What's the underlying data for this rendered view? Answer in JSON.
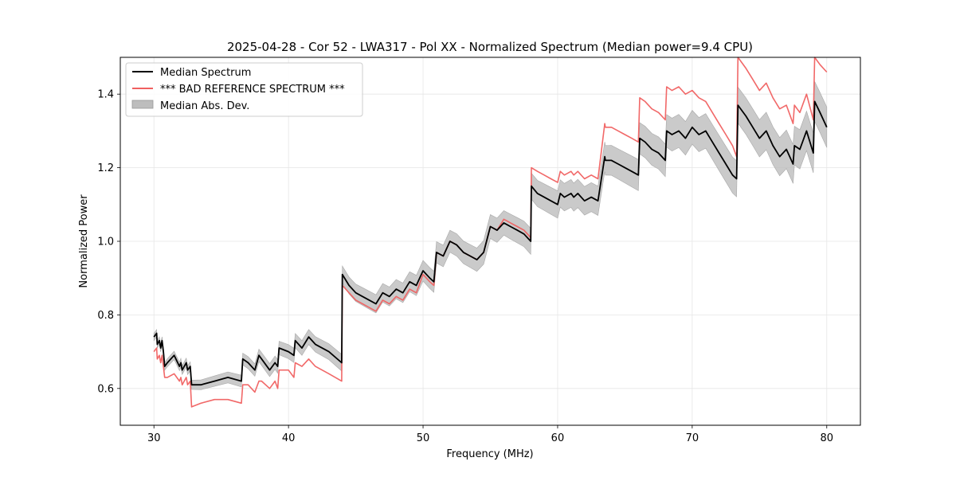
{
  "chart_data": {
    "type": "line",
    "title": "2025-04-28 - Cor 52 - LWA317 - Pol XX - Normalized Spectrum (Median power=9.4 CPU)",
    "xlabel": "Frequency (MHz)",
    "ylabel": "Normalized Power",
    "xlim": [
      27.5,
      82.5
    ],
    "ylim": [
      0.5,
      1.5
    ],
    "xticks": [
      30,
      40,
      50,
      60,
      70,
      80
    ],
    "yticks": [
      0.6,
      0.8,
      1.0,
      1.2,
      1.4
    ],
    "xtick_labels": [
      "30",
      "40",
      "50",
      "60",
      "70",
      "80"
    ],
    "ytick_labels": [
      "0.6",
      "0.8",
      "1.0",
      "1.2",
      "1.4"
    ],
    "grid": true,
    "legend": {
      "location": "upper-left",
      "entries": [
        {
          "label": "Median Spectrum",
          "color": "#000000",
          "kind": "line"
        },
        {
          "label": "*** BAD REFERENCE SPECTRUM ***",
          "color": "#f06060",
          "kind": "line"
        },
        {
          "label": "Median Abs. Dev.",
          "color": "#bdbdbd",
          "kind": "band"
        }
      ]
    },
    "series": [
      {
        "name": "Median Spectrum",
        "color": "#000000",
        "x": [
          30.0,
          30.2,
          30.25,
          30.4,
          30.5,
          30.6,
          30.7,
          30.8,
          31.0,
          31.5,
          31.9,
          32.0,
          32.1,
          32.4,
          32.5,
          32.7,
          32.8,
          33.5,
          34.5,
          35.5,
          36.5,
          36.6,
          37.0,
          37.5,
          37.8,
          38.0,
          38.6,
          39.0,
          39.2,
          39.3,
          40.0,
          40.4,
          40.5,
          41.0,
          41.5,
          42.0,
          43.0,
          43.95,
          44.0,
          44.5,
          45.0,
          45.5,
          46.0,
          46.5,
          47.0,
          47.5,
          48.0,
          48.5,
          49.0,
          49.5,
          50.0,
          50.5,
          50.8,
          51.0,
          51.5,
          52.0,
          52.5,
          53.0,
          53.5,
          54.0,
          54.5,
          55.0,
          55.5,
          56.0,
          56.5,
          57.0,
          57.5,
          58.0,
          58.05,
          58.5,
          59.0,
          59.5,
          60.0,
          60.2,
          60.5,
          61.0,
          61.2,
          61.5,
          62.0,
          62.5,
          63.0,
          63.5,
          63.55,
          64.0,
          64.5,
          65.0,
          65.5,
          66.0,
          66.1,
          66.5,
          67.0,
          67.5,
          68.0,
          68.1,
          68.5,
          69.0,
          69.5,
          70.0,
          70.5,
          71.0,
          71.5,
          72.0,
          72.5,
          73.0,
          73.3,
          73.4,
          74.0,
          74.5,
          75.0,
          75.5,
          76.0,
          76.5,
          77.0,
          77.5,
          77.6,
          78.0,
          78.5,
          79.0,
          79.1,
          79.5,
          80.0
        ],
        "values": [
          0.74,
          0.75,
          0.72,
          0.73,
          0.71,
          0.73,
          0.7,
          0.66,
          0.67,
          0.69,
          0.66,
          0.67,
          0.65,
          0.67,
          0.65,
          0.66,
          0.61,
          0.61,
          0.62,
          0.63,
          0.62,
          0.68,
          0.67,
          0.65,
          0.69,
          0.68,
          0.65,
          0.67,
          0.66,
          0.71,
          0.7,
          0.69,
          0.73,
          0.71,
          0.74,
          0.72,
          0.7,
          0.67,
          0.91,
          0.88,
          0.86,
          0.85,
          0.84,
          0.83,
          0.86,
          0.85,
          0.87,
          0.86,
          0.89,
          0.88,
          0.92,
          0.9,
          0.89,
          0.97,
          0.96,
          1.0,
          0.99,
          0.97,
          0.96,
          0.95,
          0.97,
          1.04,
          1.03,
          1.05,
          1.04,
          1.03,
          1.02,
          1.0,
          1.15,
          1.13,
          1.12,
          1.11,
          1.1,
          1.13,
          1.12,
          1.13,
          1.12,
          1.13,
          1.11,
          1.12,
          1.11,
          1.23,
          1.22,
          1.22,
          1.21,
          1.2,
          1.19,
          1.18,
          1.28,
          1.27,
          1.25,
          1.24,
          1.22,
          1.3,
          1.29,
          1.3,
          1.28,
          1.31,
          1.29,
          1.3,
          1.27,
          1.24,
          1.21,
          1.18,
          1.17,
          1.37,
          1.34,
          1.31,
          1.28,
          1.3,
          1.26,
          1.23,
          1.25,
          1.21,
          1.26,
          1.25,
          1.3,
          1.24,
          1.38,
          1.35,
          1.31
        ]
      },
      {
        "name": "*** BAD REFERENCE SPECTRUM ***",
        "color": "#f06060",
        "x": [
          30.0,
          30.2,
          30.25,
          30.4,
          30.5,
          30.6,
          30.7,
          30.8,
          31.0,
          31.5,
          31.9,
          32.0,
          32.1,
          32.4,
          32.5,
          32.7,
          32.8,
          33.5,
          34.5,
          35.5,
          36.5,
          36.6,
          37.0,
          37.5,
          37.8,
          38.0,
          38.6,
          39.0,
          39.2,
          39.3,
          40.0,
          40.4,
          40.5,
          41.0,
          41.5,
          42.0,
          43.0,
          43.95,
          44.0,
          44.5,
          45.0,
          45.5,
          46.0,
          46.5,
          47.0,
          47.5,
          48.0,
          48.5,
          49.0,
          49.5,
          50.0,
          50.5,
          50.8,
          51.0,
          51.5,
          52.0,
          52.5,
          53.0,
          53.5,
          54.0,
          54.5,
          55.0,
          55.5,
          56.0,
          56.5,
          57.0,
          57.5,
          58.0,
          58.05,
          58.5,
          59.0,
          59.5,
          60.0,
          60.2,
          60.5,
          61.0,
          61.2,
          61.5,
          62.0,
          62.5,
          63.0,
          63.5,
          63.55,
          64.0,
          64.5,
          65.0,
          65.5,
          66.0,
          66.1,
          66.5,
          67.0,
          67.5,
          68.0,
          68.1,
          68.5,
          69.0,
          69.5,
          70.0,
          70.5,
          71.0,
          71.5,
          72.0,
          72.5,
          73.0,
          73.3,
          73.4,
          74.0,
          74.5,
          75.0,
          75.5,
          76.0,
          76.5,
          77.0,
          77.5,
          77.6,
          78.0,
          78.5,
          79.0,
          79.1,
          79.5,
          80.0
        ],
        "values": [
          0.7,
          0.71,
          0.68,
          0.69,
          0.67,
          0.69,
          0.66,
          0.63,
          0.63,
          0.64,
          0.62,
          0.63,
          0.61,
          0.63,
          0.61,
          0.62,
          0.55,
          0.56,
          0.57,
          0.57,
          0.56,
          0.61,
          0.61,
          0.59,
          0.62,
          0.62,
          0.6,
          0.62,
          0.6,
          0.65,
          0.65,
          0.63,
          0.67,
          0.66,
          0.68,
          0.66,
          0.64,
          0.62,
          0.88,
          0.86,
          0.84,
          0.83,
          0.82,
          0.81,
          0.84,
          0.83,
          0.85,
          0.84,
          0.87,
          0.86,
          0.91,
          0.89,
          0.88,
          0.97,
          0.96,
          1.0,
          0.99,
          0.97,
          0.96,
          0.95,
          0.97,
          1.04,
          1.03,
          1.06,
          1.05,
          1.04,
          1.03,
          1.01,
          1.2,
          1.19,
          1.18,
          1.17,
          1.16,
          1.19,
          1.18,
          1.19,
          1.18,
          1.19,
          1.17,
          1.18,
          1.17,
          1.32,
          1.31,
          1.31,
          1.3,
          1.29,
          1.28,
          1.27,
          1.39,
          1.38,
          1.36,
          1.35,
          1.33,
          1.42,
          1.41,
          1.42,
          1.4,
          1.41,
          1.39,
          1.38,
          1.35,
          1.32,
          1.29,
          1.26,
          1.23,
          1.5,
          1.47,
          1.44,
          1.41,
          1.43,
          1.39,
          1.36,
          1.37,
          1.32,
          1.37,
          1.35,
          1.4,
          1.33,
          1.5,
          1.48,
          1.46
        ]
      }
    ],
    "band": {
      "name": "Median Abs. Dev.",
      "color": "#bdbdbd",
      "note": "band half-width grows with frequency",
      "halfwidth_at_30": 0.01,
      "halfwidth_at_80": 0.055
    }
  }
}
